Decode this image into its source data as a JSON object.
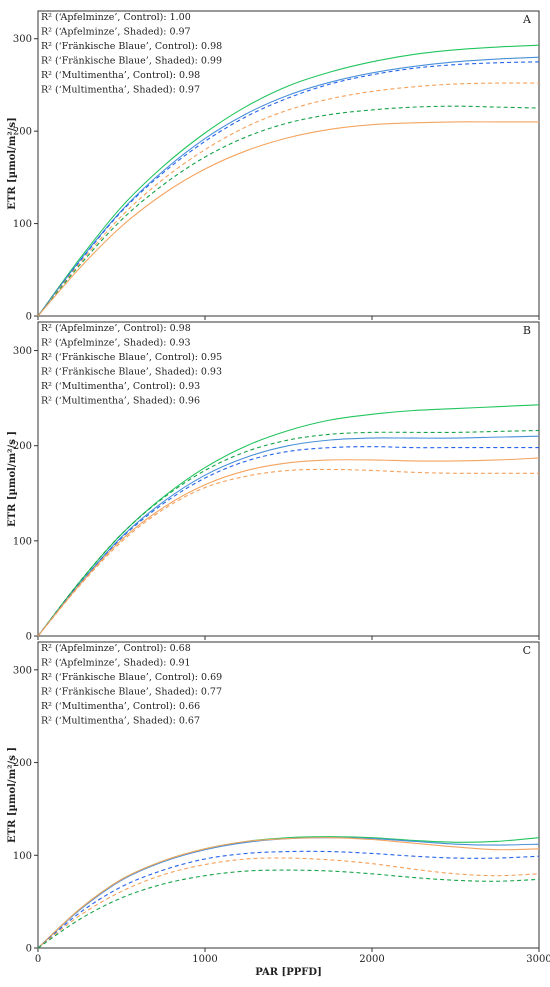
{
  "chart_data": [
    {
      "type": "line",
      "panel_label": "A",
      "ylabel": "ETR [µmol/m²/s]",
      "xlabel": "",
      "xlim": [
        0,
        3000
      ],
      "ylim": [
        0,
        330
      ],
      "x_ticks": [
        "0",
        "1000",
        "2000",
        "3000"
      ],
      "y_ticks": [
        "0",
        "100",
        "200",
        "300"
      ],
      "r2_labels": [
        "R² (‘Apfelminze’, Control): 1.00",
        "R² (‘Apfelminze’, Shaded): 0.97",
        "R² (‘Fränkische Blaue’, Control): 0.98",
        "R² (‘Fränkische Blaue’, Shaded): 0.99",
        "R² (‘Multimentha’, Control): 0.98",
        "R² (‘Multimentha’, Shaded): 0.97"
      ],
      "x": [
        0,
        250,
        500,
        750,
        1000,
        1250,
        1500,
        1750,
        2000,
        2250,
        2500,
        2750,
        3000
      ],
      "series": [
        {
          "color": "#2e8b57",
          "dashed": false,
          "stroke": "#22c55e",
          "values": [
            0,
            62,
            118,
            162,
            198,
            227,
            249,
            264,
            275,
            283,
            288,
            291,
            293
          ]
        },
        {
          "color": "#2563eb",
          "dashed": false,
          "stroke": "#4a90d9",
          "values": [
            0,
            60,
            114,
            157,
            192,
            219,
            239,
            253,
            263,
            270,
            275,
            278,
            280
          ]
        },
        {
          "color": "#2563eb",
          "dashed": true,
          "stroke": "#2563eb",
          "values": [
            0,
            59,
            113,
            155,
            189,
            216,
            236,
            251,
            261,
            268,
            272,
            274,
            275
          ]
        },
        {
          "color": "#f59e0b",
          "dashed": true,
          "stroke": "#f5a05a",
          "values": [
            0,
            57,
            108,
            148,
            180,
            205,
            223,
            235,
            243,
            248,
            251,
            252,
            252
          ]
        },
        {
          "color": "#22c55e",
          "dashed": true,
          "stroke": "#16a34a",
          "values": [
            0,
            55,
            104,
            142,
            172,
            194,
            209,
            218,
            223,
            226,
            227,
            226,
            225
          ]
        },
        {
          "color": "#f59e0b",
          "dashed": false,
          "stroke": "#f4a460",
          "values": [
            0,
            52,
            97,
            132,
            159,
            179,
            193,
            202,
            207,
            209,
            210,
            210,
            210
          ]
        }
      ]
    },
    {
      "type": "line",
      "panel_label": "B",
      "ylabel": "ETR [µmol/m²/s ]",
      "xlabel": "",
      "xlim": [
        0,
        3000
      ],
      "ylim": [
        0,
        330
      ],
      "x_ticks": [
        "0",
        "1000",
        "2000",
        "3000"
      ],
      "y_ticks": [
        "0",
        "100",
        "200",
        "300"
      ],
      "r2_labels": [
        "R² (‘Apfelminze’, Control): 0.98",
        "R² (‘Apfelminze’, Shaded): 0.93",
        "R² (‘Fränkische Blaue’, Control): 0.95",
        "R² (‘Fränkische Blaue’, Shaded): 0.93",
        "R² (‘Multimentha’, Control): 0.93",
        "R² (‘Multimentha’, Shaded): 0.96"
      ],
      "x": [
        0,
        250,
        500,
        750,
        1000,
        1250,
        1500,
        1750,
        2000,
        2250,
        2500,
        2750,
        3000
      ],
      "series": [
        {
          "color": "#22c55e",
          "dashed": false,
          "stroke": "#22c55e",
          "values": [
            0,
            57,
            107,
            146,
            177,
            200,
            216,
            227,
            233,
            237,
            239,
            241,
            243
          ]
        },
        {
          "color": "#22c55e",
          "dashed": true,
          "stroke": "#16a34a",
          "values": [
            0,
            57,
            107,
            145,
            174,
            194,
            206,
            212,
            214,
            214,
            214,
            215,
            216
          ]
        },
        {
          "color": "#4a90d9",
          "dashed": false,
          "stroke": "#4a90d9",
          "values": [
            0,
            55,
            104,
            141,
            169,
            188,
            200,
            206,
            208,
            208,
            208,
            209,
            210
          ]
        },
        {
          "color": "#2563eb",
          "dashed": true,
          "stroke": "#2563eb",
          "values": [
            0,
            55,
            103,
            139,
            166,
            184,
            194,
            198,
            199,
            198,
            198,
            198,
            198
          ]
        },
        {
          "color": "#f4a460",
          "dashed": false,
          "stroke": "#f4a460",
          "values": [
            0,
            54,
            101,
            135,
            159,
            174,
            182,
            185,
            185,
            184,
            184,
            185,
            187
          ]
        },
        {
          "color": "#f5a05a",
          "dashed": true,
          "stroke": "#f5a05a",
          "values": [
            0,
            53,
            99,
            133,
            156,
            168,
            174,
            175,
            174,
            172,
            171,
            171,
            171
          ]
        }
      ]
    },
    {
      "type": "line",
      "panel_label": "C",
      "ylabel": "ETR [µmol/m²/s ]",
      "xlabel": "PAR [PPFD]",
      "xlim": [
        0,
        3000
      ],
      "ylim": [
        0,
        330
      ],
      "x_ticks": [
        "0",
        "1000",
        "2000",
        "3000"
      ],
      "y_ticks": [
        "0",
        "100",
        "200",
        "300"
      ],
      "r2_labels": [
        "R² (‘Apfelminze’, Control): 0.68",
        "R² (‘Apfelminze’, Shaded): 0.91",
        "R² (‘Fränkische Blaue’, Control): 0.69",
        "R² (‘Fränkische Blaue’, Shaded): 0.77",
        "R² (‘Multimentha’, Control): 0.66",
        "R² (‘Multimentha’, Shaded): 0.67"
      ],
      "x": [
        0,
        250,
        500,
        750,
        1000,
        1250,
        1500,
        1750,
        2000,
        2250,
        2500,
        2750,
        3000
      ],
      "series": [
        {
          "color": "#22c55e",
          "dashed": false,
          "stroke": "#22c55e",
          "values": [
            0,
            42,
            74,
            94,
            107,
            115,
            119,
            120,
            119,
            116,
            114,
            115,
            119
          ]
        },
        {
          "color": "#4a90d9",
          "dashed": false,
          "stroke": "#4a90d9",
          "values": [
            0,
            41,
            73,
            93,
            106,
            114,
            118,
            119,
            118,
            115,
            112,
            111,
            112
          ]
        },
        {
          "color": "#f4a460",
          "dashed": false,
          "stroke": "#f4a460",
          "values": [
            0,
            42,
            74,
            94,
            107,
            115,
            118,
            119,
            117,
            113,
            109,
            106,
            107
          ]
        },
        {
          "color": "#2563eb",
          "dashed": true,
          "stroke": "#2563eb",
          "values": [
            0,
            38,
            66,
            84,
            96,
            102,
            104,
            104,
            102,
            99,
            97,
            97,
            99
          ]
        },
        {
          "color": "#f5a05a",
          "dashed": true,
          "stroke": "#f5a05a",
          "values": [
            0,
            35,
            61,
            79,
            90,
            96,
            97,
            95,
            91,
            85,
            80,
            78,
            80
          ]
        },
        {
          "color": "#16a34a",
          "dashed": true,
          "stroke": "#16a34a",
          "values": [
            0,
            31,
            54,
            69,
            78,
            83,
            84,
            83,
            80,
            76,
            73,
            72,
            74
          ]
        }
      ]
    }
  ]
}
